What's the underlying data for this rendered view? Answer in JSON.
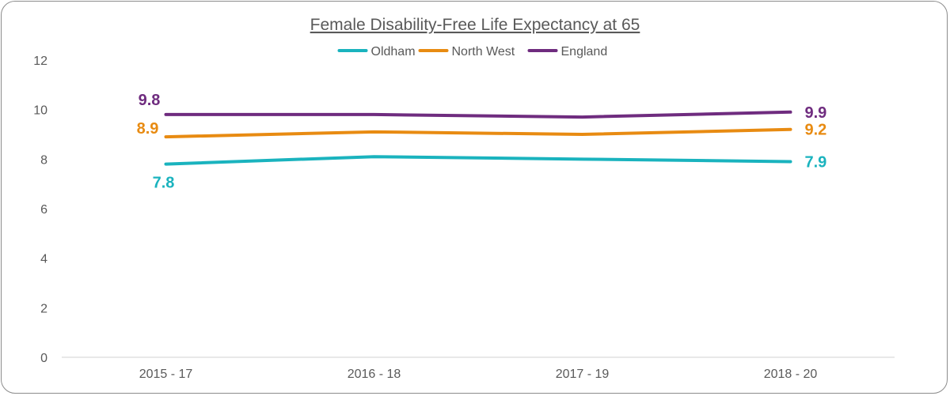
{
  "chart_data": {
    "type": "line",
    "title": "Female Disability-Free Life Expectancy at 65",
    "xlabel": "",
    "ylabel": "",
    "categories": [
      "2015 - 17",
      "2016 - 18",
      "2017 - 19",
      "2018 - 20"
    ],
    "ylim": [
      0,
      12
    ],
    "yticks": [
      0,
      2,
      4,
      6,
      8,
      10,
      12
    ],
    "grid": false,
    "legend": "top-center",
    "series": [
      {
        "name": "Oldham",
        "color": "#1ab3be",
        "values": [
          7.8,
          8.1,
          8.0,
          7.9
        ],
        "labels": [
          {
            "index": 0,
            "text": "7.8",
            "pos": "below"
          },
          {
            "index": 3,
            "text": "7.9",
            "pos": "right"
          }
        ]
      },
      {
        "name": "North West",
        "color": "#e88b12",
        "values": [
          8.9,
          9.1,
          9.0,
          9.2
        ],
        "labels": [
          {
            "index": 0,
            "text": "8.9",
            "pos": "left"
          },
          {
            "index": 3,
            "text": "9.2",
            "pos": "right"
          }
        ]
      },
      {
        "name": "England",
        "color": "#6f2c7f",
        "values": [
          9.8,
          9.8,
          9.7,
          9.9
        ],
        "labels": [
          {
            "index": 0,
            "text": "9.8",
            "pos": "above-left"
          },
          {
            "index": 3,
            "text": "9.9",
            "pos": "right"
          }
        ]
      }
    ]
  }
}
